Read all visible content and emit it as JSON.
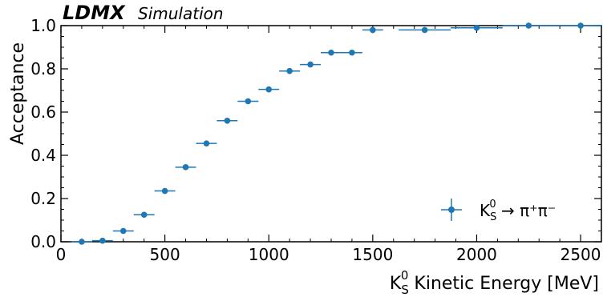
{
  "chart_data": {
    "type": "scatter",
    "experiment": "LDMX",
    "experiment_tag": "Simulation",
    "xlabel_prefix": "K",
    "xlabel_sup": "0",
    "xlabel_sub": "S",
    "xlabel_rest": " Kinetic Energy [MeV]",
    "ylabel": "Acceptance",
    "xlim": [
      0,
      2600
    ],
    "ylim": [
      0.0,
      1.0
    ],
    "xticks": [
      0,
      500,
      1000,
      1500,
      2000,
      2500
    ],
    "yticks": [
      0.0,
      0.2,
      0.4,
      0.6,
      0.8,
      1.0
    ],
    "ytick_labels": [
      "0.0",
      "0.2",
      "0.4",
      "0.6",
      "0.8",
      "1.0"
    ],
    "grid": false,
    "legend_placement": "bottom-right",
    "legend": {
      "base": "K",
      "sup": "0",
      "sub": "S",
      "rest": " → π⁺π⁻"
    },
    "color": "#1f77b4",
    "series": [
      {
        "x": [
          100,
          200,
          300,
          400,
          500,
          600,
          700,
          800,
          900,
          1000,
          1100,
          1200,
          1300,
          1400,
          1500,
          1750,
          2000,
          2250,
          2500
        ],
        "y": [
          0.0,
          0.005,
          0.05,
          0.125,
          0.235,
          0.345,
          0.455,
          0.56,
          0.65,
          0.705,
          0.79,
          0.82,
          0.875,
          0.875,
          0.98,
          0.98,
          0.99,
          1.0,
          1.0
        ],
        "xerr": [
          50,
          50,
          50,
          50,
          50,
          50,
          50,
          50,
          50,
          50,
          50,
          50,
          50,
          50,
          50,
          125,
          125,
          125,
          125
        ],
        "yerr": [
          0.005,
          0.008,
          0.01,
          0.01,
          0.01,
          0.01,
          0.01,
          0.01,
          0.01,
          0.01,
          0.01,
          0.01,
          0.01,
          0.01,
          0.015,
          0.01,
          0.01,
          0.005,
          0.005
        ]
      }
    ]
  }
}
